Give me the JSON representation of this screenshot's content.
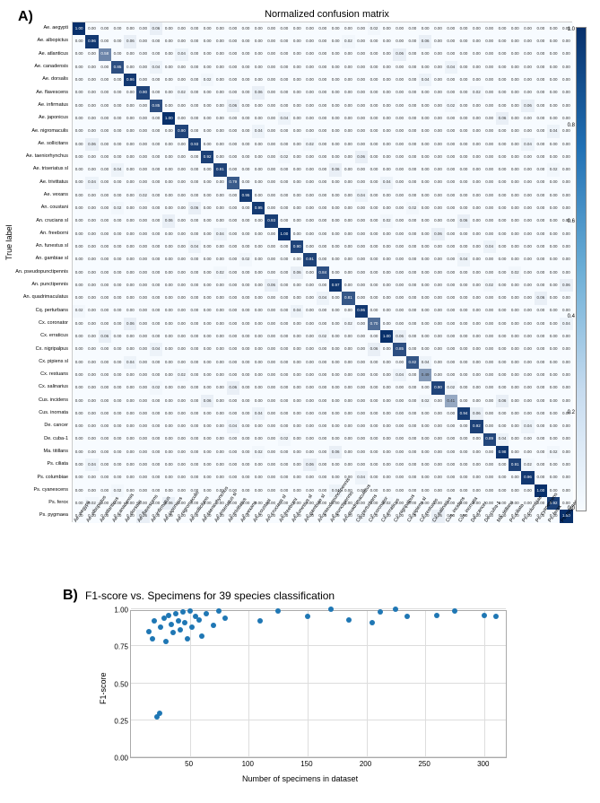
{
  "panelA": {
    "label": "A)",
    "title": "Normalized confusion matrix",
    "ylabel": "True label",
    "xlabel": "Predicted label",
    "species": [
      "Ae. aegypti",
      "Ae. albopictus",
      "Ae. atlanticus",
      "Ae. canadensis",
      "Ae. dorsalis",
      "Ae. flavescens",
      "Ae. infirmatus",
      "Ae. japonicus",
      "Ae. nigromaculis",
      "Ae. sollicitans",
      "Ae. taeniorhynchus",
      "Ae. triseriatus sl",
      "Ae. trivittatus",
      "Ae. vexans",
      "An. coustani",
      "An. crucians sl",
      "An. freeborni",
      "An. funestus sl",
      "An. gambiae sl",
      "An. pseudopunctipennis",
      "An. punctipennis",
      "An. quadrimaculatus",
      "Cq. perturbans",
      "Cx. coronator",
      "Cx. erraticus",
      "Cx. nigripalpus",
      "Cx. pipiens sl",
      "Cx. restuans",
      "Cx. salinarius",
      "Cus. incidens",
      "Cus. inornata",
      "De. cancer",
      "De. cuba-1",
      "Ma. titillans",
      "Ps. ciliata",
      "Ps. columbiae",
      "Ps. cyanescens",
      "Ps. ferox",
      "Ps. pygmaea"
    ],
    "n": 39,
    "cell_size": 14.3,
    "colorbar_ticks": [
      "1.0",
      "0.8",
      "0.6",
      "0.4",
      "0.2",
      "0.0"
    ],
    "diag_values": [
      1.0,
      0.96,
      0.58,
      0.85,
      0.96,
      0.9,
      0.85,
      1.0,
      0.9,
      0.93,
      0.92,
      0.91,
      0.79,
      0.95,
      0.95,
      0.93,
      1.0,
      0.9,
      0.91,
      0.84,
      0.97,
      0.81,
      0.96,
      0.7,
      1.0,
      0.85,
      0.82,
      0.49,
      0.9,
      0.41,
      0.94,
      0.92,
      0.89,
      0.98,
      0.91,
      0.96,
      1.0,
      0.92,
      1.0
    ],
    "off_color": "#f7fbff",
    "text_dark": "#333333",
    "text_light": "#ffffff",
    "colorbar_gradient": [
      "#08306b",
      "#2171b5",
      "#6baed6",
      "#c6dbef",
      "#f7fbff"
    ]
  },
  "panelB": {
    "label": "B)",
    "title": "F1-score vs. Specimens for 39 species classification",
    "ylabel": "F1-score",
    "xlabel": "Number of specimens in dataset",
    "xlim": [
      0,
      320
    ],
    "ylim": [
      0,
      1.0
    ],
    "xticks": [
      50,
      100,
      150,
      200,
      250,
      300
    ],
    "yticks": [
      0.0,
      0.25,
      0.5,
      0.75,
      1.0
    ],
    "point_color": "#1f77b4",
    "point_size": 6,
    "grid_color": "#dddddd",
    "points": [
      [
        15,
        0.85
      ],
      [
        18,
        0.8
      ],
      [
        20,
        0.92
      ],
      [
        22,
        0.27
      ],
      [
        24,
        0.3
      ],
      [
        25,
        0.88
      ],
      [
        28,
        0.94
      ],
      [
        30,
        0.78
      ],
      [
        32,
        0.96
      ],
      [
        34,
        0.9
      ],
      [
        36,
        0.84
      ],
      [
        38,
        0.97
      ],
      [
        40,
        0.92
      ],
      [
        42,
        0.86
      ],
      [
        44,
        0.98
      ],
      [
        46,
        0.91
      ],
      [
        48,
        0.8
      ],
      [
        50,
        0.99
      ],
      [
        52,
        0.88
      ],
      [
        55,
        0.95
      ],
      [
        58,
        0.93
      ],
      [
        60,
        0.82
      ],
      [
        64,
        0.97
      ],
      [
        70,
        0.89
      ],
      [
        75,
        0.99
      ],
      [
        80,
        0.94
      ],
      [
        110,
        0.92
      ],
      [
        125,
        0.99
      ],
      [
        150,
        0.95
      ],
      [
        170,
        1.0
      ],
      [
        185,
        0.93
      ],
      [
        205,
        0.91
      ],
      [
        212,
        0.98
      ],
      [
        225,
        1.0
      ],
      [
        235,
        0.95
      ],
      [
        260,
        0.96
      ],
      [
        275,
        0.99
      ],
      [
        300,
        0.96
      ],
      [
        310,
        0.95
      ]
    ]
  }
}
